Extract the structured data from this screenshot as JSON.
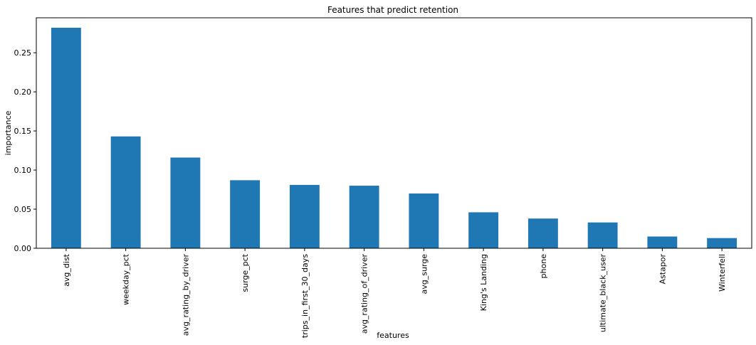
{
  "chart_data": {
    "type": "bar",
    "title": "Features that predict retention",
    "xlabel": "features",
    "ylabel": "importance",
    "categories": [
      "avg_dist",
      "weekday_pct",
      "avg_rating_by_driver",
      "surge_pct",
      "trips_in_first_30_days",
      "avg_rating_of_driver",
      "avg_surge",
      "King's Landing",
      "phone",
      "ultimate_black_user",
      "Astapor",
      "Winterfell"
    ],
    "values": [
      0.282,
      0.143,
      0.116,
      0.087,
      0.081,
      0.08,
      0.07,
      0.046,
      0.038,
      0.033,
      0.015,
      0.013
    ],
    "ylim": [
      0,
      0.2947
    ],
    "yticks": [
      "0.00",
      "0.05",
      "0.10",
      "0.15",
      "0.20",
      "0.25"
    ],
    "bar_color": "#1f77b4",
    "grid": false,
    "legend": "none"
  }
}
